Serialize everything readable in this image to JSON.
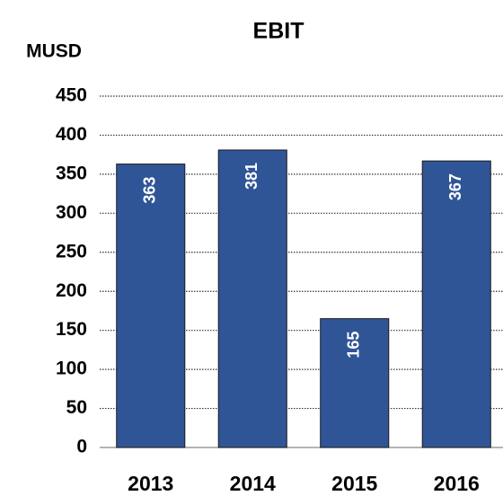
{
  "chart_data": {
    "type": "bar",
    "title": "EBIT",
    "y_axis_label": "MUSD",
    "categories": [
      "2013",
      "2014",
      "2015",
      "2016"
    ],
    "values": [
      363,
      381,
      165,
      367
    ],
    "color": "#2f5597",
    "ylim": [
      0,
      450
    ],
    "yticks": [
      0,
      50,
      100,
      150,
      200,
      250,
      300,
      350,
      400,
      450
    ],
    "grid": true
  }
}
